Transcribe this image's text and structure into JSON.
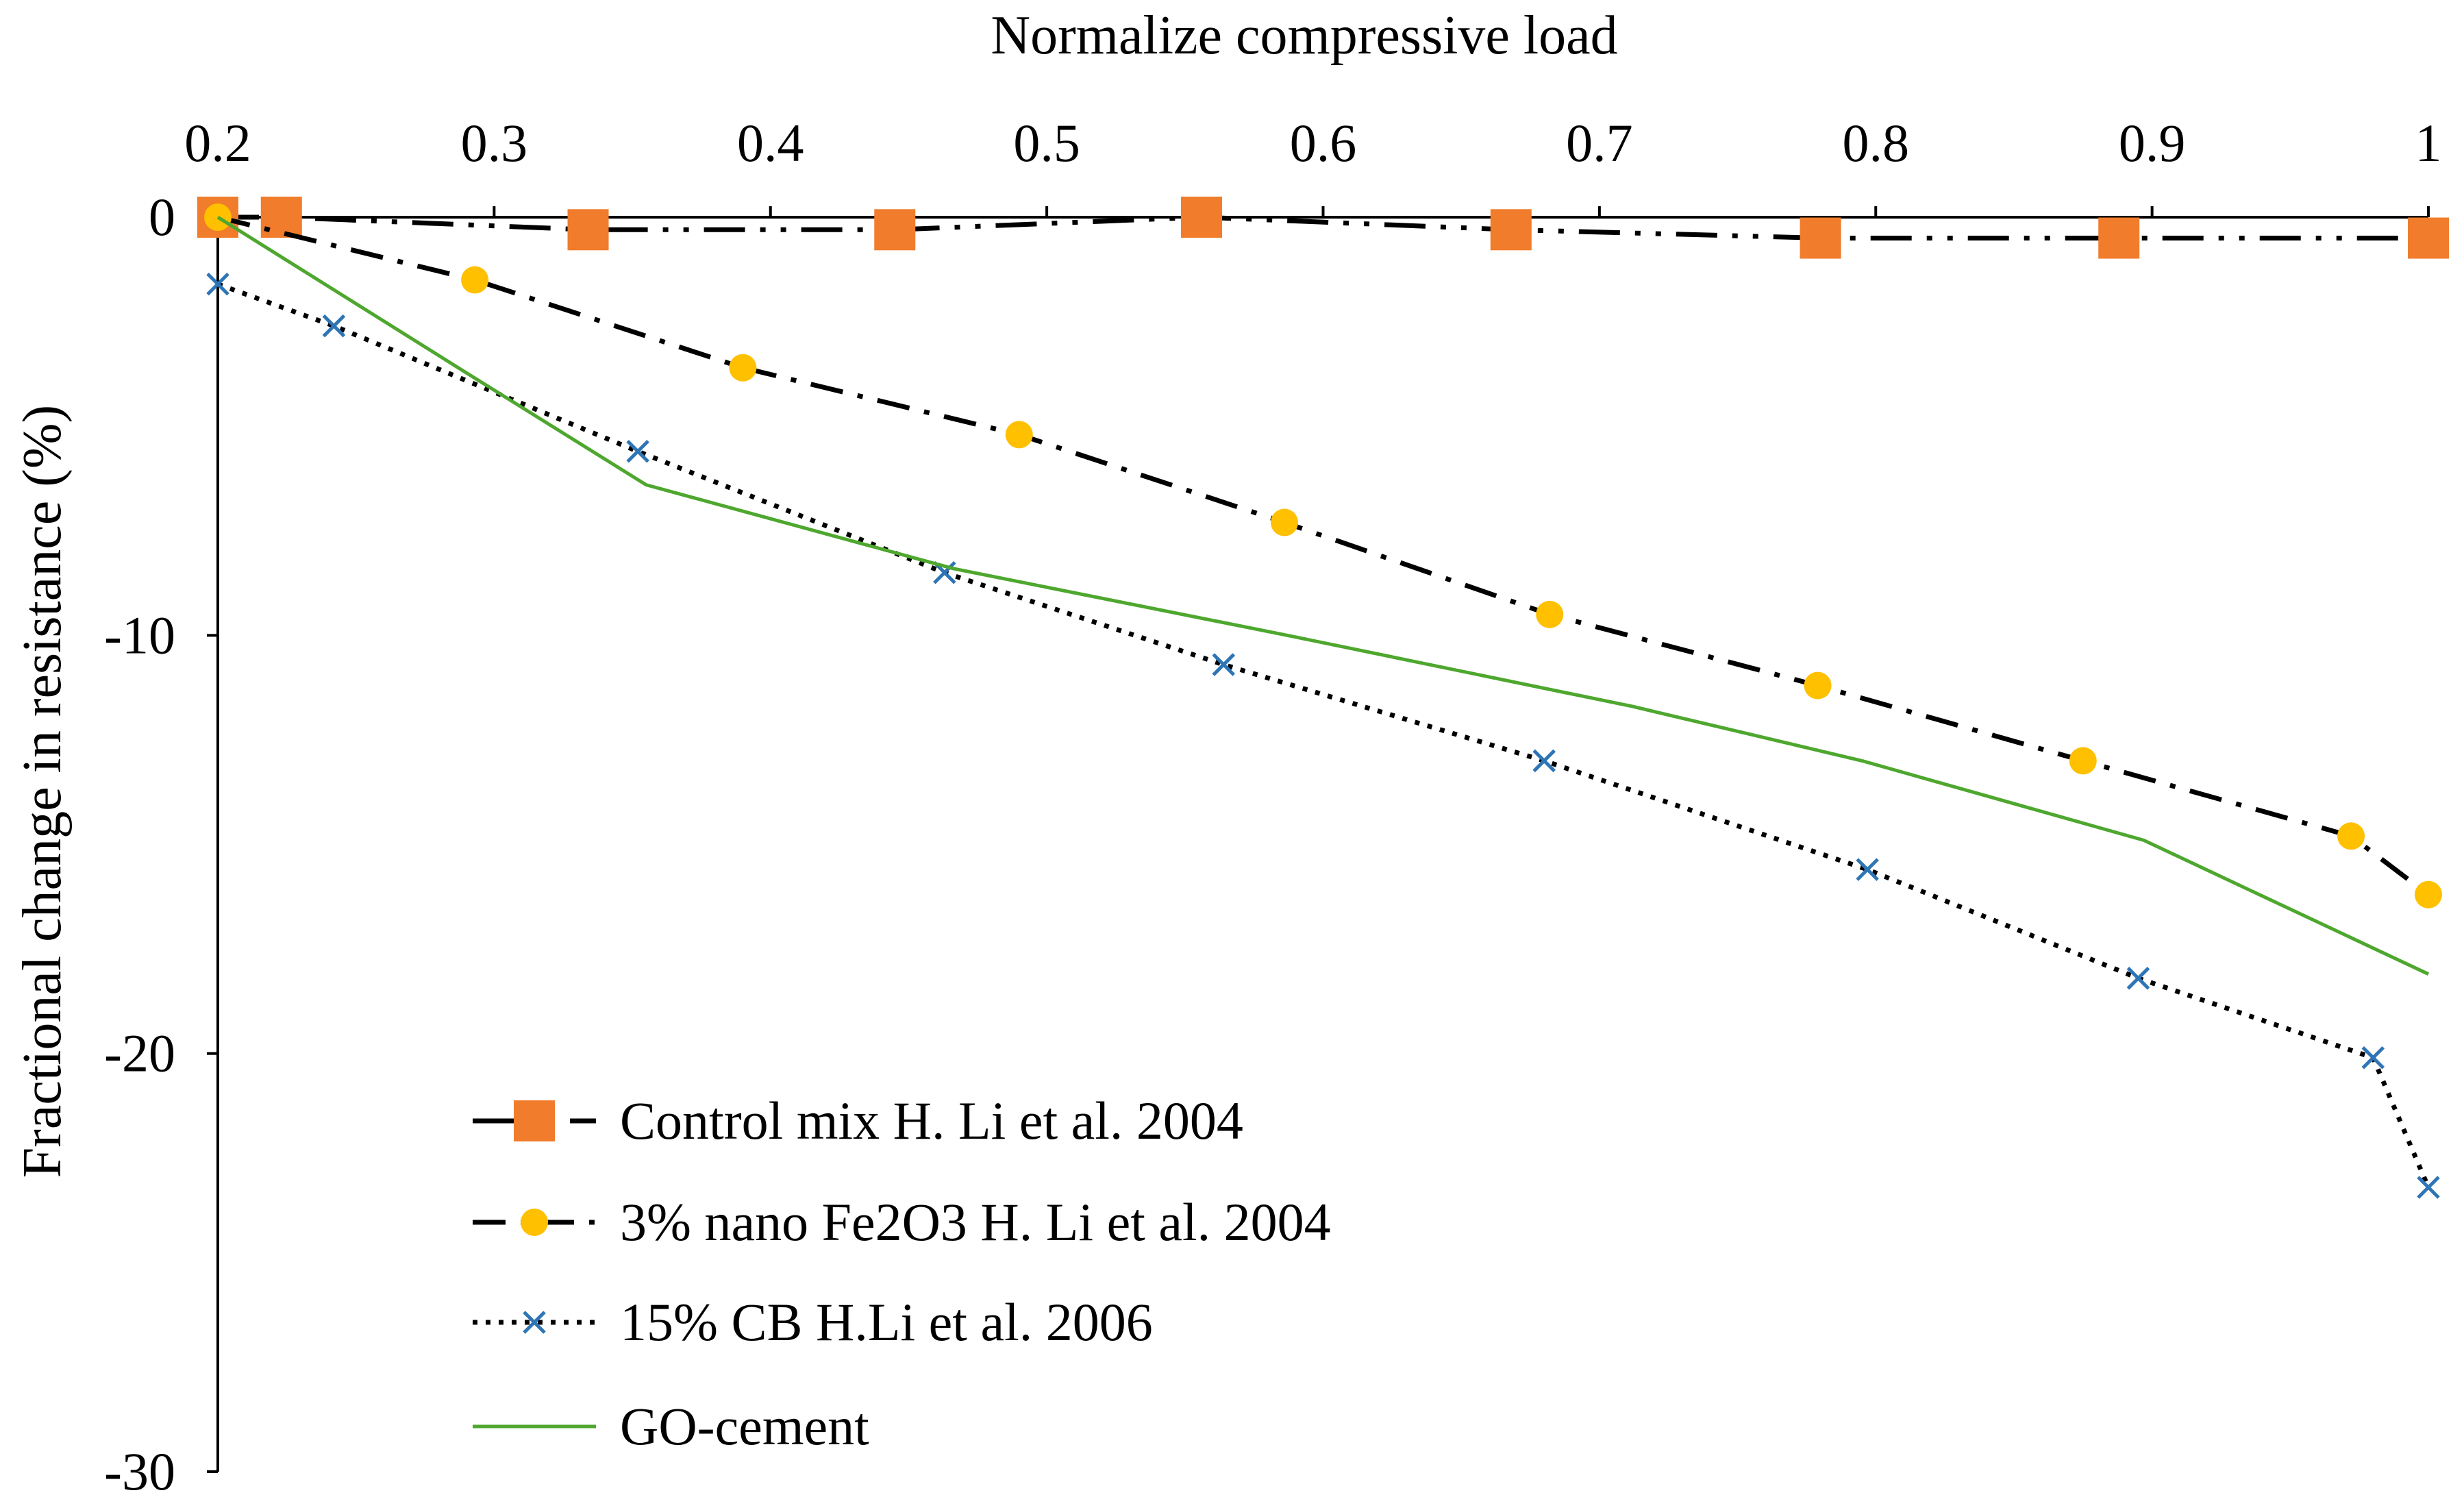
{
  "chart_data": {
    "type": "line",
    "title": "",
    "xlabel": "Normalize compressive load",
    "ylabel": "Fractional change in resistance (%)",
    "xlim": [
      0.2,
      1
    ],
    "ylim": [
      -30,
      0
    ],
    "x_ticks": [
      0.2,
      0.3,
      0.4,
      0.5,
      0.6,
      0.7,
      0.8,
      0.9,
      1
    ],
    "x_tick_labels": [
      "0.2",
      "0.3",
      "0.4",
      "0.5",
      "0.6",
      "0.7",
      "0.8",
      "0.9",
      "1"
    ],
    "y_ticks": [
      0,
      -10,
      -20,
      -30
    ],
    "y_tick_labels": [
      "0",
      "-10",
      "-20",
      "-30"
    ],
    "x_axis_position": "top",
    "legend_position": "bottom-left",
    "grid": false,
    "series": [
      {
        "name": "Control mix H. Li et al. 2004",
        "color": "#000000",
        "marker_color": "#F07C2C",
        "marker": "square",
        "line_style": "dash-dot-dot",
        "x": [
          0.2,
          0.223,
          0.334,
          0.445,
          0.556,
          0.668,
          0.78,
          0.888,
          1.0
        ],
        "y": [
          0.0,
          0.0,
          -0.3,
          -0.3,
          0.0,
          -0.3,
          -0.5,
          -0.5,
          -0.5
        ]
      },
      {
        "name": "3% nano Fe2O3 H. Li et al. 2004",
        "color": "#000000",
        "marker_color": "#FFC000",
        "marker": "circle",
        "line_style": "dash-dot",
        "x": [
          0.2,
          0.293,
          0.39,
          0.49,
          0.586,
          0.682,
          0.779,
          0.875,
          0.972,
          1.0
        ],
        "y": [
          0.0,
          -1.5,
          -3.6,
          -5.2,
          -7.3,
          -9.5,
          -11.2,
          -13.0,
          -14.8,
          -16.2
        ]
      },
      {
        "name": "15% CB H.Li et al. 2006",
        "color": "#000000",
        "marker_color": "#2E75B6",
        "marker": "x",
        "line_style": "dotted",
        "x": [
          0.2,
          0.242,
          0.352,
          0.463,
          0.564,
          0.68,
          0.797,
          0.895,
          0.98,
          1.0
        ],
        "y": [
          -1.6,
          -2.6,
          -5.6,
          -8.5,
          -10.7,
          -13.0,
          -15.6,
          -18.2,
          -20.1,
          -23.2
        ]
      },
      {
        "name": "GO-cement",
        "color": "#4EA72E",
        "marker": "none",
        "line_style": "solid",
        "x": [
          0.2,
          0.287,
          0.355,
          0.466,
          0.587,
          0.712,
          0.795,
          0.897,
          1.0
        ],
        "y": [
          0.0,
          -3.6,
          -6.4,
          -8.4,
          -10.0,
          -11.7,
          -13.0,
          -14.9,
          -18.1
        ]
      }
    ]
  }
}
